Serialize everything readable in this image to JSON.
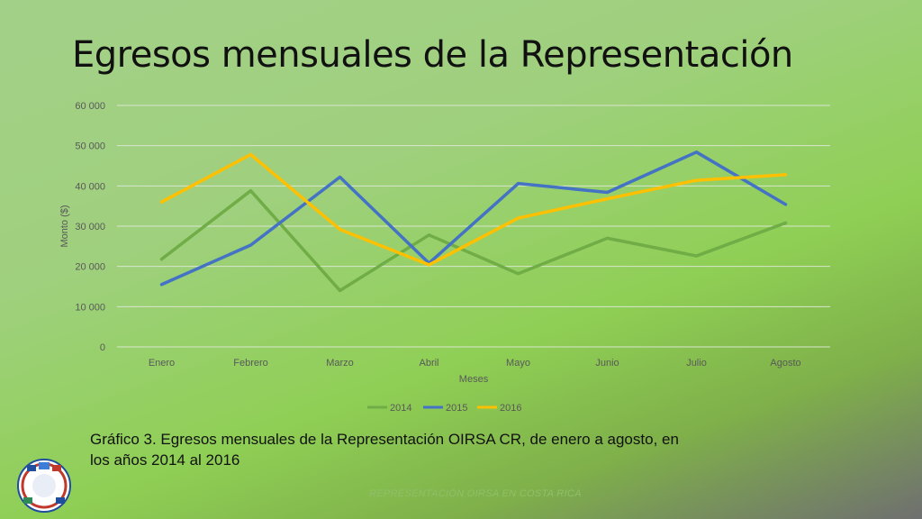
{
  "slide": {
    "title": "Egresos mensuales de la Representación",
    "caption": "Gráfico 3. Egresos mensuales de la Representación OIRSA CR, de enero a agosto, en los años 2014 al 2016",
    "footer": "REPRESENTACIÓN OIRSA EN COSTA RICA",
    "logo_text": "OIRSA"
  },
  "colors": {
    "2014": "#70ad47",
    "2015": "#4472c4",
    "2016": "#ffc000"
  },
  "chart_data": {
    "type": "line",
    "categories": [
      "Enero",
      "Febrero",
      "Marzo",
      "Abril",
      "Mayo",
      "Junio",
      "Julio",
      "Agosto"
    ],
    "series": [
      {
        "name": "2014",
        "values": [
          21800,
          38800,
          14000,
          27800,
          18200,
          27000,
          22600,
          30800
        ]
      },
      {
        "name": "2015",
        "values": [
          15500,
          25300,
          42200,
          20800,
          40600,
          38400,
          48400,
          35400
        ]
      },
      {
        "name": "2016",
        "values": [
          36000,
          47800,
          29200,
          20400,
          32000,
          36800,
          41400,
          42800
        ]
      }
    ],
    "xlabel": "Meses",
    "ylabel": "Monto ($)",
    "ylim": [
      0,
      60000
    ],
    "yticks": [
      "0",
      "10 000",
      "20 000",
      "30 000",
      "40 000",
      "50 000",
      "60 000"
    ],
    "grid": true,
    "legend": "bottom"
  }
}
